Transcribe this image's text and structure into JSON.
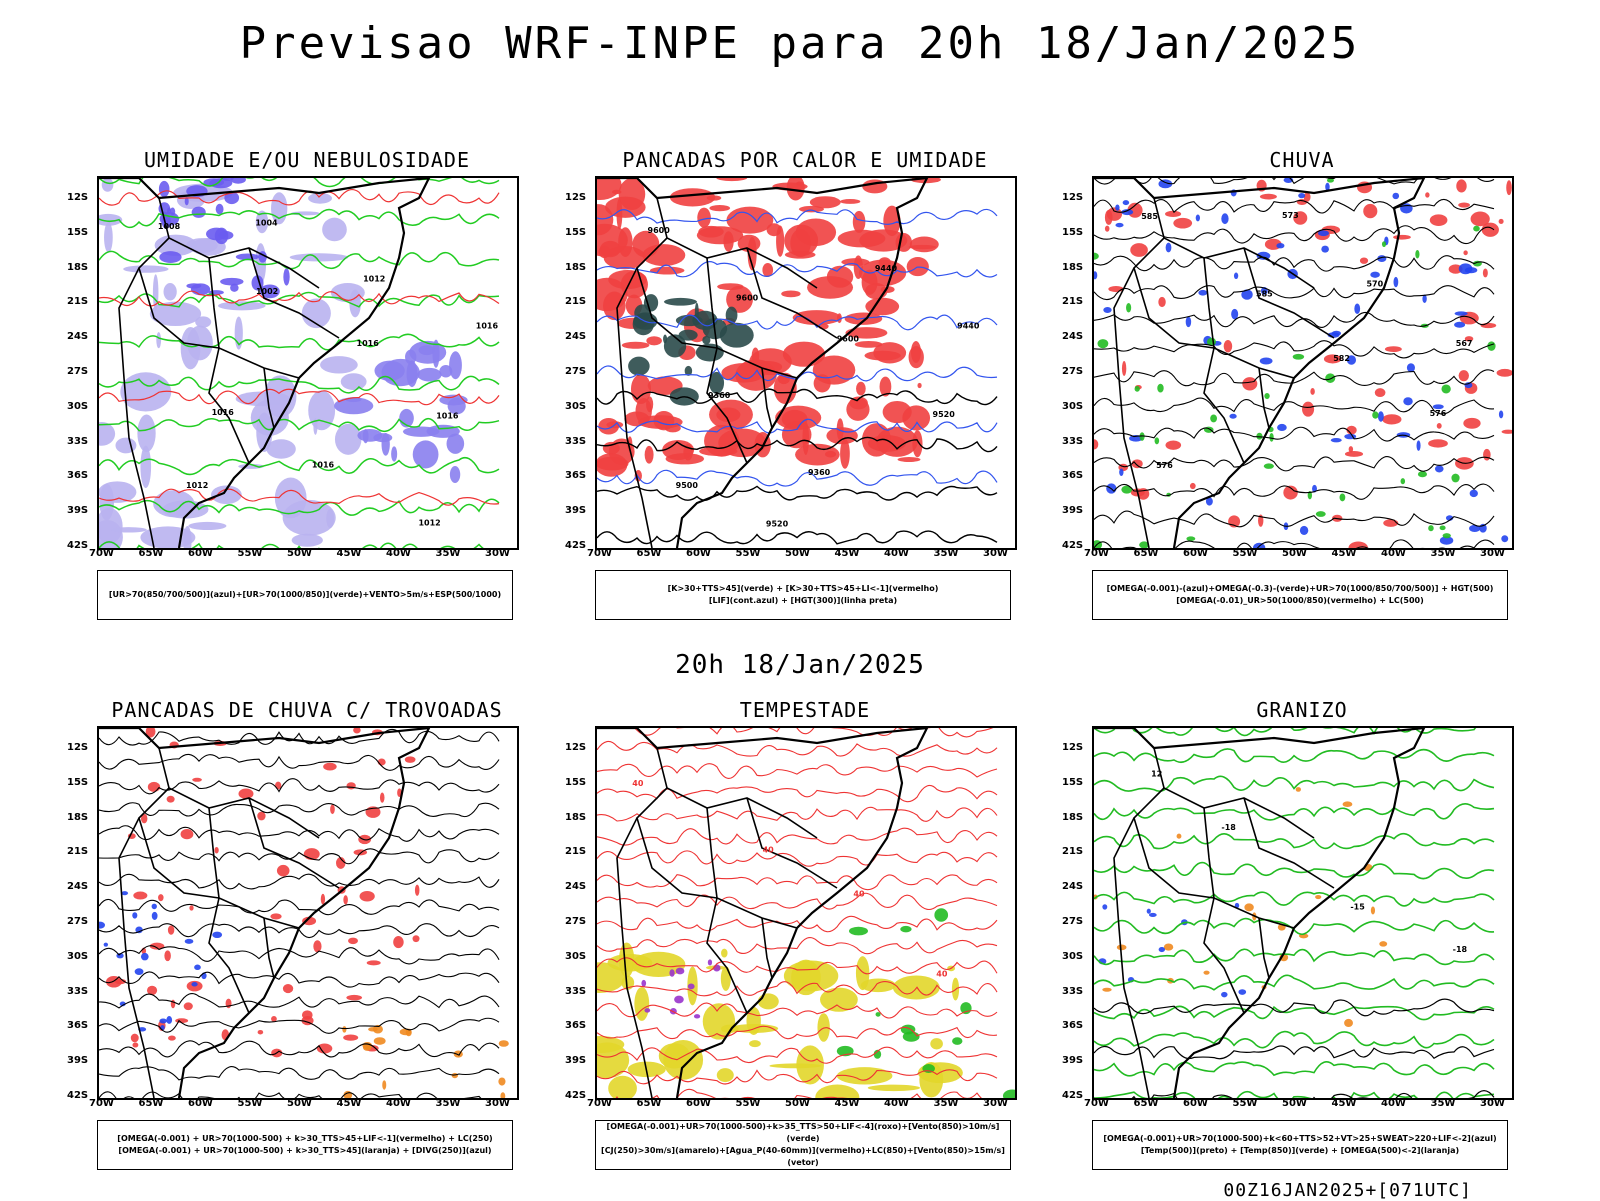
{
  "title": "Previsao WRF-INPE  para 20h 18/Jan/2025",
  "mid_title": "20h 18/Jan/2025",
  "footer": "00Z16JAN2025+[071UTC]",
  "lat_labels": [
    "12S",
    "15S",
    "18S",
    "21S",
    "24S",
    "27S",
    "30S",
    "33S",
    "36S",
    "39S",
    "42S"
  ],
  "lon_labels": [
    "70W",
    "65W",
    "60W",
    "55W",
    "50W",
    "45W",
    "40W",
    "35W",
    "30W"
  ],
  "panels": [
    {
      "title": "UMIDADE E/OU NEBULOSIDADE",
      "legend": [
        "[UR>70(850/700/500)](azul)+[UR>70(1000/850)](verde)+VENTO>5m/s+ESP(500/1000)"
      ],
      "contour_labels": [
        "1008",
        "1002",
        "1016",
        "1016",
        "1012",
        "1004",
        "1012",
        "1016",
        "1016",
        "1016",
        "1012"
      ]
    },
    {
      "title": "PANCADAS POR CALOR E UMIDADE",
      "legend": [
        "[K>30+TTS>45](verde) + [K>30+TTS>45+LI<-1](vermelho)",
        "[LIF](cont.azul) + [HGT(300)](linha preta)"
      ],
      "contour_labels": [
        "9600",
        "9600",
        "9600",
        "9520",
        "9500",
        "9520",
        "9440",
        "9440",
        "9360",
        "9360"
      ]
    },
    {
      "title": "CHUVA",
      "legend": [
        "[OMEGA(-0.001)-(azul)+OMEGA(-0.3)-(verde)+UR>70(1000/850/700/500)] + HGT(500)",
        "[OMEGA(-0.01)_UR>50(1000/850)(vermelho) + LC(500)"
      ],
      "contour_labels": [
        "585",
        "585",
        "582",
        "576",
        "576",
        "573",
        "570",
        "567"
      ]
    },
    {
      "title": "PANCADAS DE CHUVA C/ TROVOADAS",
      "legend": [
        "[OMEGA(-0.001) + UR>70(1000-500) + k>30_TTS>45+LIF<-1](vermelho) + LC(250)",
        "[OMEGA(-0.001) + UR>70(1000-500) + k>30_TTS>45](laranja) + [DIVG(250)](azul)"
      ],
      "contour_labels": []
    },
    {
      "title": "TEMPESTADE",
      "legend": [
        "[OMEGA(-0.001)+UR>70(1000-500)+k>35_TTS>50+LIF<-4](roxo)+[Vento(850)>10m/s](verde)",
        "[CJ(250)>30m/s](amarelo)+[Agua_P(40-60mm)](vermelho)+LC(850)+[Vento(850)>15m/s](vetor)"
      ],
      "contour_labels": [
        "40",
        "40",
        "40",
        "40"
      ]
    },
    {
      "title": "GRANIZO",
      "legend": [
        "[OMEGA(-0.001)+UR>70(1000-500)+k<60+TTS>52+VT>25+SWEAT>220+LIF<-2](azul)",
        "[Temp(500)](preto) + [Temp(850)](verde) + [OMEGA(500)<-2](laranja)"
      ],
      "contour_labels": [
        "12",
        "-18",
        "-15",
        "-18"
      ]
    }
  ]
}
